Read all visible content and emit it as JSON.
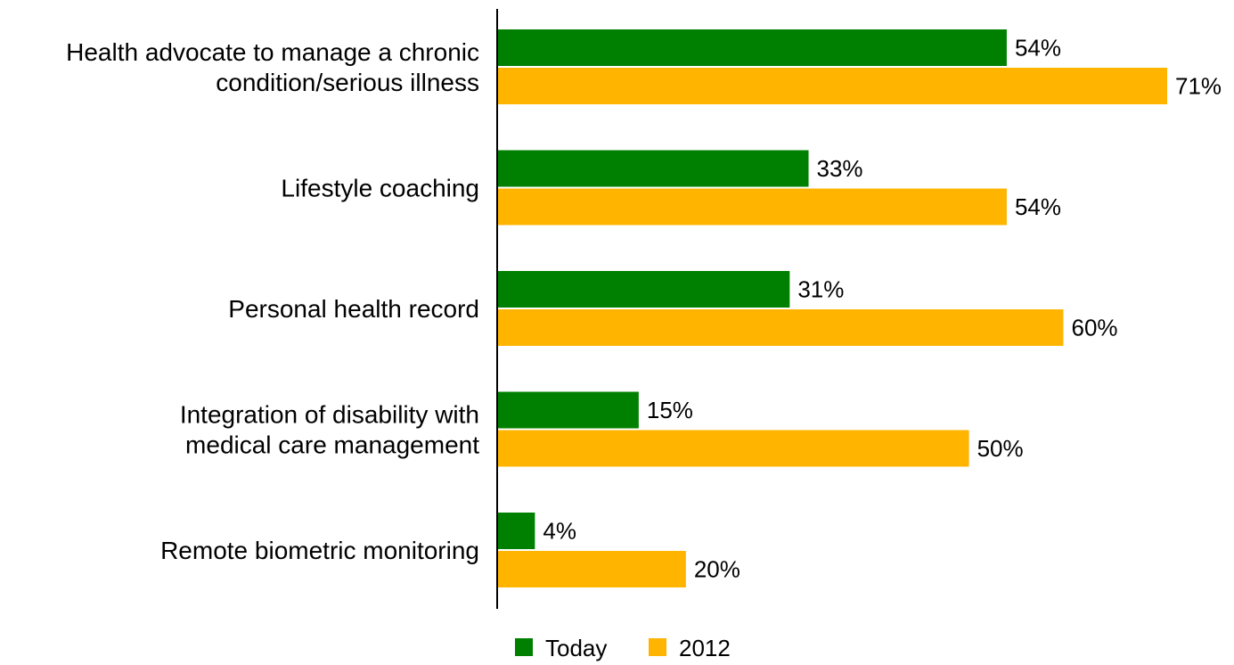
{
  "chart_data": {
    "type": "bar",
    "orientation": "horizontal",
    "categories": [
      [
        "Health advocate to manage a chronic",
        "condition/serious illness"
      ],
      [
        "Lifestyle coaching"
      ],
      [
        "Personal health record"
      ],
      [
        "Integration of disability with",
        "medical care management"
      ],
      [
        "Remote biometric monitoring"
      ]
    ],
    "series": [
      {
        "name": "Today",
        "color": "#008000",
        "values": [
          54,
          33,
          31,
          15,
          4
        ],
        "labels": [
          "54%",
          "33%",
          "31%",
          "15%",
          "4%"
        ]
      },
      {
        "name": "2012",
        "color": "#FFB400",
        "values": [
          71,
          54,
          60,
          50,
          20
        ],
        "labels": [
          "71%",
          "54%",
          "60%",
          "50%",
          "20%"
        ]
      }
    ],
    "xlim": [
      0,
      71
    ],
    "value_suffix": "%",
    "grid": false,
    "legend": "bottom"
  }
}
